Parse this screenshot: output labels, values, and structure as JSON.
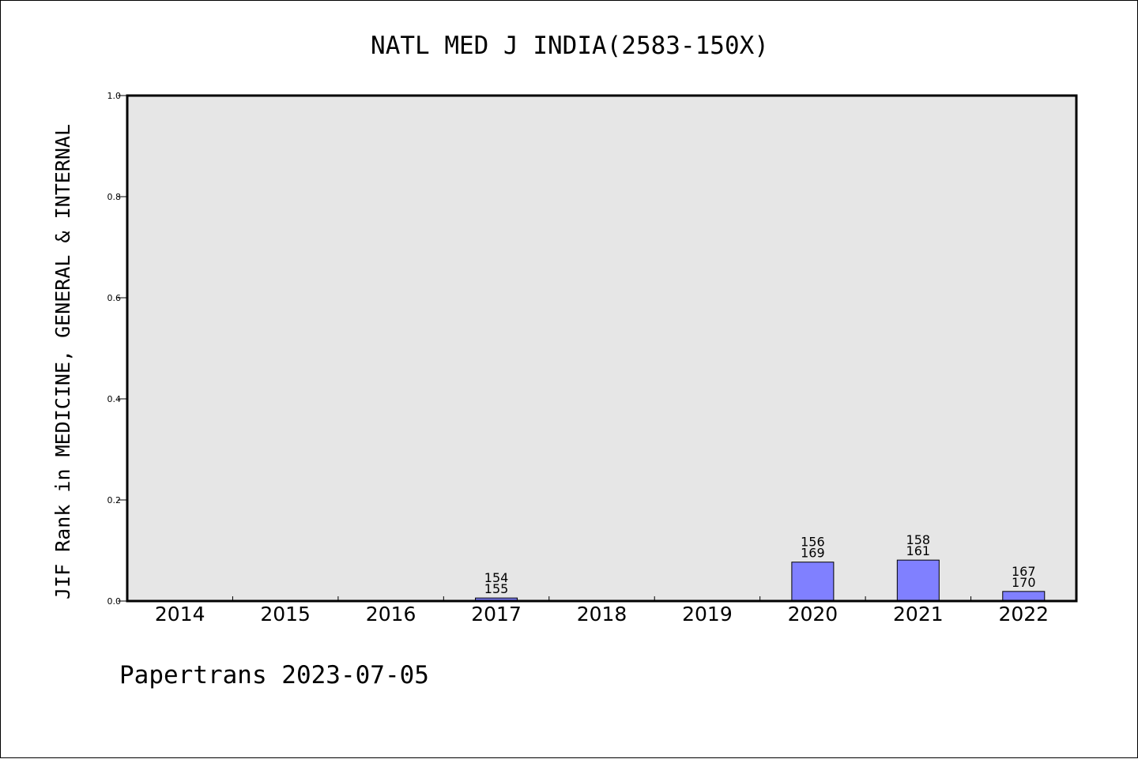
{
  "chart_data": {
    "type": "bar",
    "title": "NATL MED J INDIA(2583-150X)",
    "ylabel": "JIF Rank in MEDICINE, GENERAL & INTERNAL",
    "xlabel": "",
    "ylim": [
      0,
      1.0
    ],
    "yticks": [
      "0.0",
      "0.2",
      "0.4",
      "0.6",
      "0.8",
      "1.0"
    ],
    "grid": false,
    "categories": [
      "2014",
      "2015",
      "2016",
      "2017",
      "2018",
      "2019",
      "2020",
      "2021",
      "2022"
    ],
    "values": [
      null,
      null,
      null,
      0.006,
      null,
      null,
      0.077,
      0.081,
      0.019
    ],
    "annotations": [
      null,
      null,
      null,
      [
        "154",
        "155"
      ],
      null,
      null,
      [
        "156",
        "169"
      ],
      [
        "158",
        "161"
      ],
      [
        "167",
        "170"
      ]
    ],
    "colors": {
      "bar": "#8080ff",
      "plot_background": "#e6e6e6"
    }
  },
  "footer": "Papertrans 2023-07-05"
}
